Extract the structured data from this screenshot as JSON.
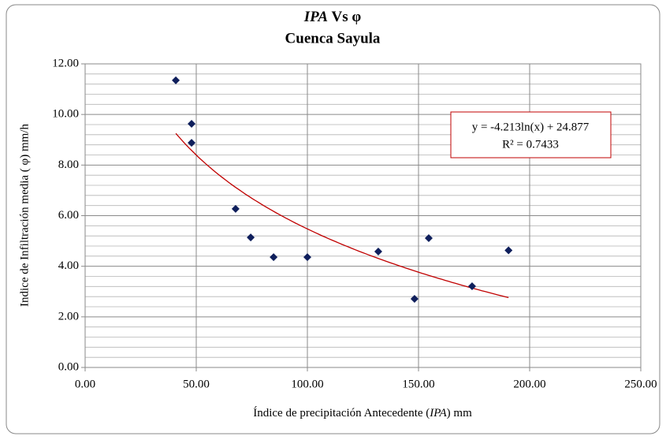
{
  "chart_data": {
    "type": "scatter",
    "title": [
      "IPA",
      "Vs φ"
    ],
    "subtitle": "Cuenca Sayula",
    "xlabel": [
      "Índice de precipitación Antecedente (",
      "IPA",
      ") mm"
    ],
    "ylabel": "Indice de Infiltración  media ( φ) mm/h",
    "x": [
      40.8,
      47.9,
      47.9,
      67.7,
      74.5,
      84.8,
      100.0,
      131.9,
      148.2,
      154.6,
      174.1,
      190.5
    ],
    "values": [
      11.35,
      9.63,
      8.88,
      6.27,
      5.14,
      4.36,
      4.36,
      4.58,
      2.71,
      5.11,
      3.21,
      4.63
    ],
    "color": "#0f1f5c",
    "xlim": [
      0,
      250
    ],
    "xticks": [
      {
        "value": 0,
        "label": "0.00"
      },
      {
        "value": 50,
        "label": "50.00"
      },
      {
        "value": 100,
        "label": "100.00"
      },
      {
        "value": 150,
        "label": "150.00"
      },
      {
        "value": 200,
        "label": "200.00"
      },
      {
        "value": 250,
        "label": "250.00"
      }
    ],
    "ylim": [
      0,
      12
    ],
    "yticks": [
      {
        "value": 0,
        "label": "0.00"
      },
      {
        "value": 2,
        "label": "2.00"
      },
      {
        "value": 4,
        "label": "4.00"
      },
      {
        "value": 6,
        "label": "6.00"
      },
      {
        "value": 8,
        "label": "8.00"
      },
      {
        "value": 10,
        "label": "10.00"
      },
      {
        "value": 12,
        "label": "12.00"
      }
    ],
    "yminorticks": [
      0.4,
      0.8,
      1.2,
      1.6,
      2.4,
      2.8,
      3.2,
      3.6,
      4.4,
      4.8,
      5.2,
      5.6,
      6.4,
      6.8,
      7.2,
      7.6,
      8.4,
      8.8,
      9.2,
      9.6,
      10.4,
      10.8,
      11.2,
      11.6
    ],
    "grid": true,
    "trendline": {
      "type": "log",
      "a": -4.213,
      "b": 24.877,
      "color": "#c00000",
      "equation": "y = -4.213ln(x) + 24.877",
      "r2": "R² = 0.7433"
    }
  }
}
